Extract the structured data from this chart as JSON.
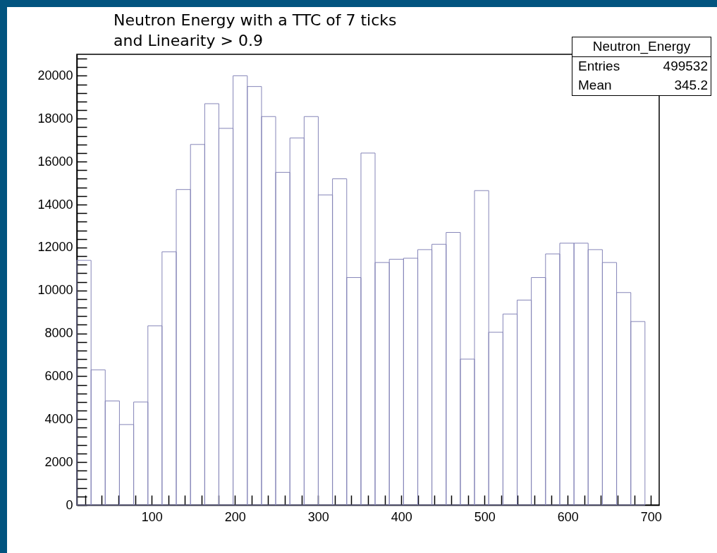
{
  "chart_data": {
    "type": "histogram",
    "title": "Neutron Energy with a TTC of 7 ticks\nand Linearity > 0.9",
    "bins": [
      10,
      27.1,
      44.1,
      61.2,
      78.3,
      95.4,
      112.4,
      129.5,
      146.6,
      163.7,
      180.7,
      197.8,
      214.9,
      232.0,
      249.0,
      266.1,
      283.2,
      300.2,
      317.3,
      334.4,
      351.5,
      368.5,
      385.6,
      402.7,
      419.8,
      436.8,
      453.9,
      471.0,
      488.0,
      505.1,
      522.2,
      539.3,
      556.3,
      573.4,
      590.5,
      607.6,
      624.6,
      641.7,
      658.8,
      675.9,
      692.9
    ],
    "values": [
      11400,
      6300,
      4850,
      3750,
      4800,
      8350,
      11800,
      14700,
      16800,
      18700,
      17550,
      20000,
      19500,
      18100,
      15500,
      17100,
      18100,
      14450,
      15200,
      10600,
      16400,
      11300,
      11450,
      11500,
      11900,
      12150,
      12700,
      6800,
      14650,
      8050,
      8900,
      9550,
      10600,
      11700,
      12200,
      12200,
      11900,
      11300,
      9900,
      8550
    ],
    "color": "#8585b8",
    "xlim": [
      10,
      710
    ],
    "ylim": [
      0,
      21000
    ],
    "xticks": [
      {
        "value": 20,
        "label": null
      },
      {
        "value": 40,
        "label": null
      },
      {
        "value": 60,
        "label": null
      },
      {
        "value": 80,
        "label": null
      },
      100,
      {
        "value": 120,
        "label": null
      },
      {
        "value": 140,
        "label": null
      },
      {
        "value": 160,
        "label": null
      },
      {
        "value": 180,
        "label": null
      },
      200,
      {
        "value": 220,
        "label": null
      },
      {
        "value": 240,
        "label": null
      },
      {
        "value": 260,
        "label": null
      },
      {
        "value": 280,
        "label": null
      },
      300,
      {
        "value": 320,
        "label": null
      },
      {
        "value": 340,
        "label": null
      },
      {
        "value": 360,
        "label": null
      },
      {
        "value": 380,
        "label": null
      },
      400,
      {
        "value": 420,
        "label": null
      },
      {
        "value": 440,
        "label": null
      },
      {
        "value": 460,
        "label": null
      },
      {
        "value": 480,
        "label": null
      },
      500,
      {
        "value": 520,
        "label": null
      },
      {
        "value": 540,
        "label": null
      },
      {
        "value": 560,
        "label": null
      },
      {
        "value": 580,
        "label": null
      },
      600,
      {
        "value": 620,
        "label": null
      },
      {
        "value": 640,
        "label": null
      },
      {
        "value": 660,
        "label": null
      },
      {
        "value": 680,
        "label": null
      },
      700
    ],
    "yticks": [
      0,
      {
        "value": 400,
        "label": null
      },
      {
        "value": 800,
        "label": null
      },
      {
        "value": 1200,
        "label": null
      },
      {
        "value": 1600,
        "label": null
      },
      2000,
      {
        "value": 2400,
        "label": null
      },
      {
        "value": 2800,
        "label": null
      },
      {
        "value": 3200,
        "label": null
      },
      {
        "value": 3600,
        "label": null
      },
      4000,
      {
        "value": 4400,
        "label": null
      },
      {
        "value": 4800,
        "label": null
      },
      {
        "value": 5200,
        "label": null
      },
      {
        "value": 5600,
        "label": null
      },
      6000,
      {
        "value": 6400,
        "label": null
      },
      {
        "value": 6800,
        "label": null
      },
      {
        "value": 7200,
        "label": null
      },
      {
        "value": 7600,
        "label": null
      },
      8000,
      {
        "value": 8400,
        "label": null
      },
      {
        "value": 8800,
        "label": null
      },
      {
        "value": 9200,
        "label": null
      },
      {
        "value": 9600,
        "label": null
      },
      10000,
      {
        "value": 10400,
        "label": null
      },
      {
        "value": 10800,
        "label": null
      },
      {
        "value": 11200,
        "label": null
      },
      {
        "value": 11600,
        "label": null
      },
      12000,
      {
        "value": 12400,
        "label": null
      },
      {
        "value": 12800,
        "label": null
      },
      {
        "value": 13200,
        "label": null
      },
      {
        "value": 13600,
        "label": null
      },
      14000,
      {
        "value": 14400,
        "label": null
      },
      {
        "value": 14800,
        "label": null
      },
      {
        "value": 15200,
        "label": null
      },
      {
        "value": 15600,
        "label": null
      },
      16000,
      {
        "value": 16400,
        "label": null
      },
      {
        "value": 16800,
        "label": null
      },
      {
        "value": 17200,
        "label": null
      },
      {
        "value": 17600,
        "label": null
      },
      18000,
      {
        "value": 18400,
        "label": null
      },
      {
        "value": 18800,
        "label": null
      },
      {
        "value": 19200,
        "label": null
      },
      {
        "value": 19600,
        "label": null
      },
      20000,
      {
        "value": 20400,
        "label": null
      },
      {
        "value": 20800,
        "label": null
      }
    ],
    "annotations": [
      "Neutron_Energy",
      "Entries 499532",
      "Mean 345.2"
    ]
  }
}
